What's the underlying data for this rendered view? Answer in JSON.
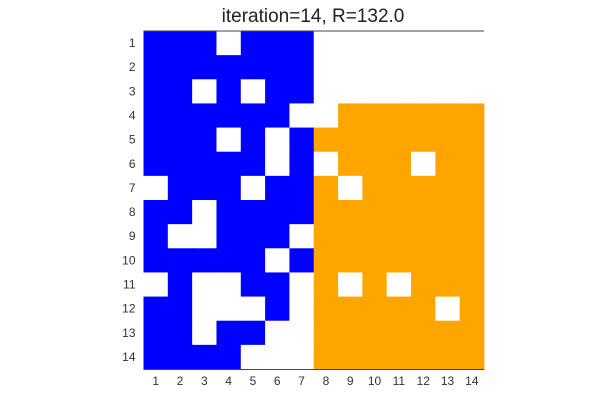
{
  "chart_data": {
    "type": "heatmap",
    "title": "iteration=14, R=132.0",
    "xlabel": "",
    "ylabel": "",
    "x_ticks": [
      "1",
      "2",
      "3",
      "4",
      "5",
      "6",
      "7",
      "8",
      "9",
      "10",
      "11",
      "12",
      "13",
      "14"
    ],
    "y_ticks": [
      "1",
      "2",
      "3",
      "4",
      "5",
      "6",
      "7",
      "8",
      "9",
      "10",
      "11",
      "12",
      "13",
      "14"
    ],
    "colors": {
      "0": "#ffffff",
      "1": "#0000ff",
      "2": "#ffa500"
    },
    "legend": "none",
    "grid": false,
    "cells": [
      [
        1,
        1,
        1,
        0,
        1,
        1,
        1,
        0,
        0,
        0,
        0,
        0,
        0,
        0
      ],
      [
        1,
        1,
        1,
        1,
        1,
        1,
        1,
        0,
        0,
        0,
        0,
        0,
        0,
        0
      ],
      [
        1,
        1,
        0,
        1,
        0,
        1,
        1,
        0,
        0,
        0,
        0,
        0,
        0,
        0
      ],
      [
        1,
        1,
        1,
        1,
        1,
        1,
        0,
        0,
        2,
        2,
        2,
        2,
        2,
        2
      ],
      [
        1,
        1,
        1,
        0,
        1,
        0,
        1,
        2,
        2,
        2,
        2,
        2,
        2,
        2
      ],
      [
        1,
        1,
        1,
        1,
        1,
        0,
        1,
        0,
        2,
        2,
        2,
        0,
        2,
        2
      ],
      [
        0,
        1,
        1,
        1,
        0,
        1,
        1,
        2,
        0,
        2,
        2,
        2,
        2,
        2
      ],
      [
        1,
        1,
        0,
        1,
        1,
        1,
        1,
        2,
        2,
        2,
        2,
        2,
        2,
        2
      ],
      [
        1,
        0,
        0,
        1,
        1,
        1,
        0,
        2,
        2,
        2,
        2,
        2,
        2,
        2
      ],
      [
        1,
        1,
        1,
        1,
        1,
        0,
        1,
        2,
        2,
        2,
        2,
        2,
        2,
        2
      ],
      [
        0,
        1,
        0,
        0,
        1,
        1,
        0,
        2,
        0,
        2,
        0,
        2,
        2,
        2
      ],
      [
        1,
        1,
        0,
        0,
        0,
        1,
        0,
        2,
        2,
        2,
        2,
        2,
        0,
        2
      ],
      [
        1,
        1,
        0,
        1,
        1,
        0,
        0,
        2,
        2,
        2,
        2,
        2,
        2,
        2
      ],
      [
        1,
        1,
        1,
        1,
        0,
        0,
        0,
        2,
        2,
        2,
        2,
        2,
        2,
        2
      ]
    ]
  }
}
